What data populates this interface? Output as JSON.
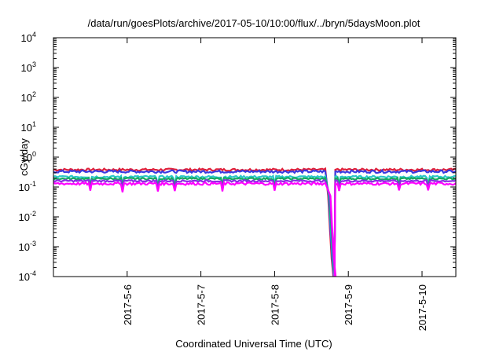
{
  "chart_data": {
    "type": "line",
    "title": "/data/run/goesPlots/archive/2017-05-10/10:00/flux/../bryn/5daysMoon.plot",
    "xlabel": "Coordinated Universal Time (UTC)",
    "ylabel": "cGy/day",
    "yscale": "log",
    "ylim": [
      0.0001,
      10000
    ],
    "y_ticks": [
      {
        "value": 0.0001,
        "base": "10",
        "exp": "-4"
      },
      {
        "value": 0.001,
        "base": "10",
        "exp": "-3"
      },
      {
        "value": 0.01,
        "base": "10",
        "exp": "-2"
      },
      {
        "value": 0.1,
        "base": "10",
        "exp": "-1"
      },
      {
        "value": 1,
        "base": "10",
        "exp": "0"
      },
      {
        "value": 10,
        "base": "10",
        "exp": "1"
      },
      {
        "value": 100,
        "base": "10",
        "exp": "2"
      },
      {
        "value": 1000,
        "base": "10",
        "exp": "3"
      },
      {
        "value": 10000,
        "base": "10",
        "exp": "4"
      }
    ],
    "xlim": [
      "2017-05-05 00:00",
      "2017-05-10 11:00"
    ],
    "x_ticks": [
      "2017-5-6",
      "2017-5-7",
      "2017-5-8",
      "2017-5-9",
      "2017-5-10"
    ],
    "grid": false,
    "legend": "none",
    "gap": {
      "dropout_start": "2017-05-08 16:40",
      "dropout_end": "2017-05-08 20:00"
    },
    "series": [
      {
        "color": "#e0203a",
        "level": 0.38,
        "noise": 0.09
      },
      {
        "color": "#3a3ae0",
        "level": 0.33,
        "noise": 0.1
      },
      {
        "color": "#2ac8c8",
        "level": 0.22,
        "noise": 0.08
      },
      {
        "color": "#18a860",
        "level": 0.19,
        "noise": 0.07
      },
      {
        "color": "#8a2be2",
        "level": 0.16,
        "noise": 0.07
      },
      {
        "color": "#ff00ff",
        "level": 0.13,
        "noise": 0.1
      }
    ]
  }
}
